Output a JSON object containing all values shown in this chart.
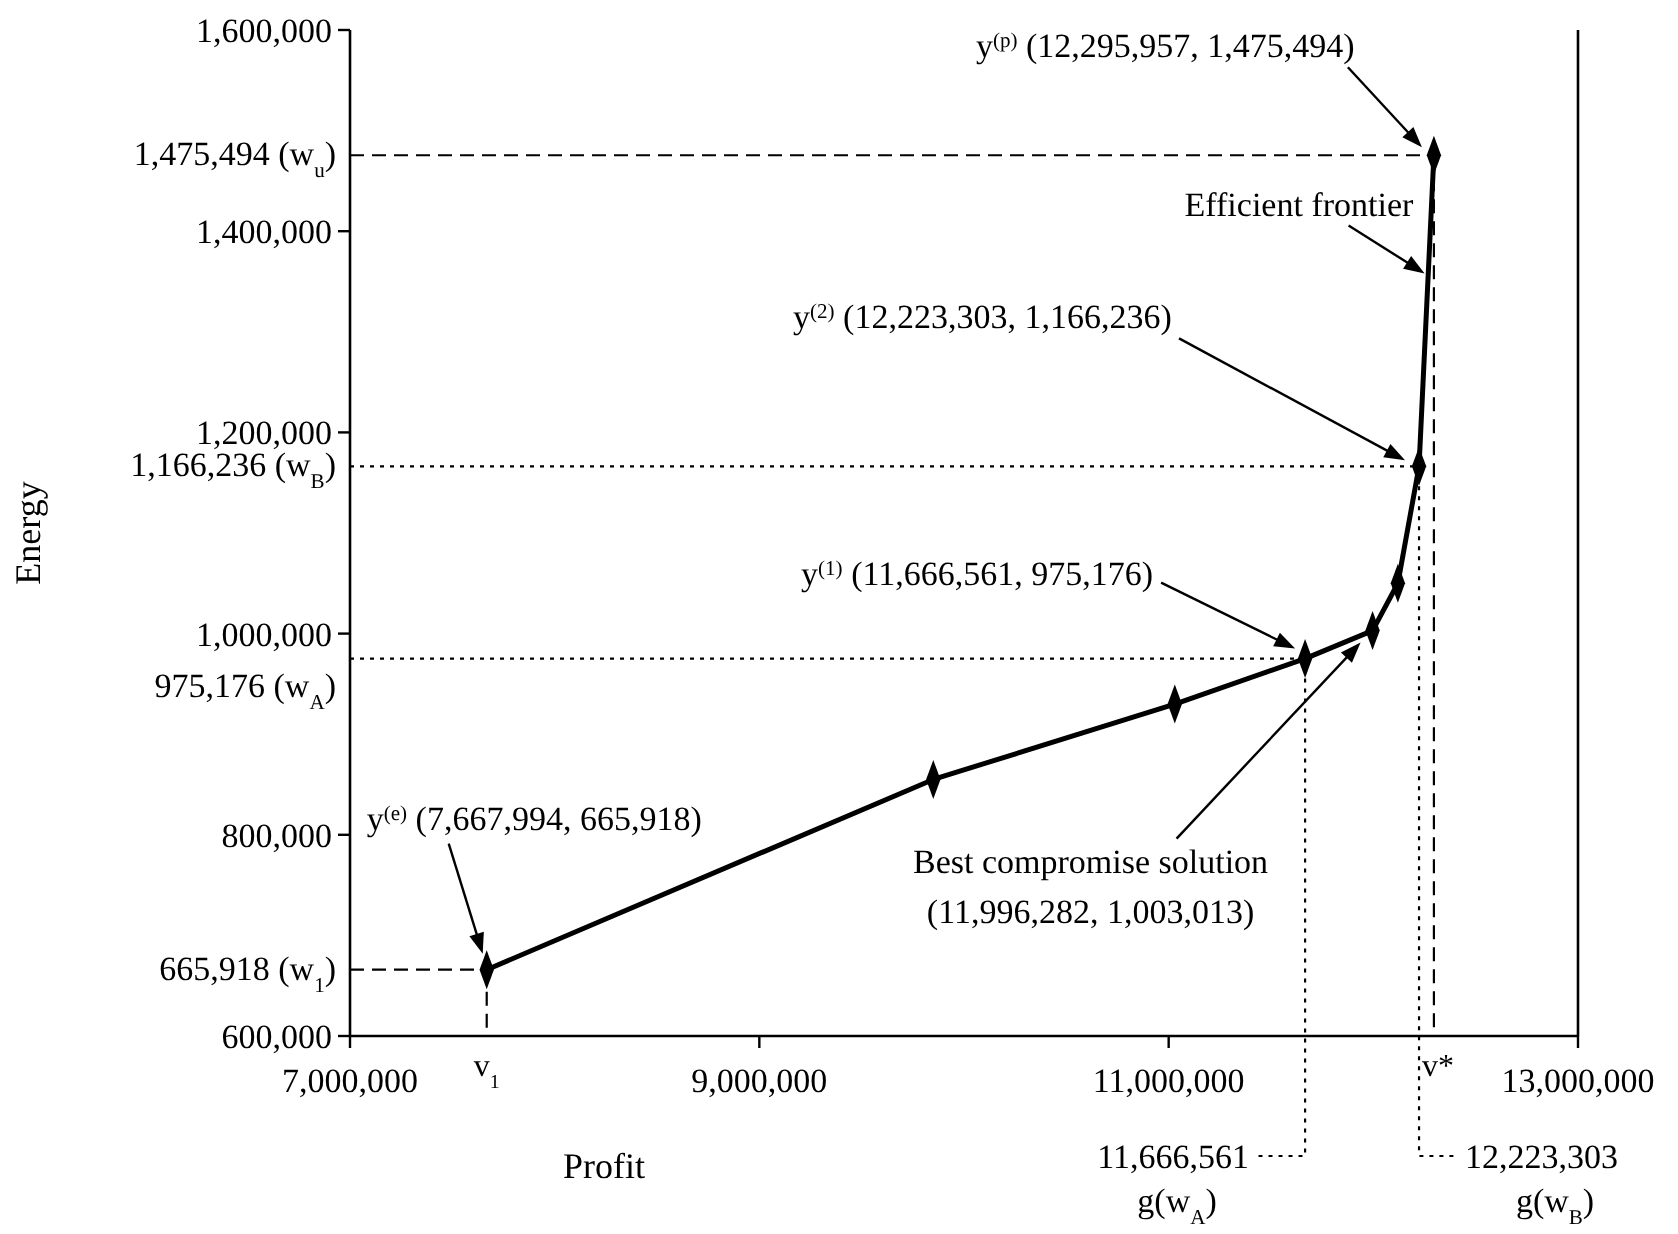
{
  "chart_data": {
    "type": "line",
    "xlabel": "Profit",
    "ylabel": "Energy",
    "x": [
      7667994,
      9850000,
      11030000,
      11666561,
      11996282,
      12120000,
      12223303,
      12295957
    ],
    "series": [
      {
        "color": "#000000",
        "values": [
          665918,
          855000,
          930000,
          975176,
          1003013,
          1050000,
          1166236,
          1475494
        ]
      }
    ],
    "marker": "diamond",
    "line_style": "solid",
    "grid": false,
    "xlim": [
      7000000,
      13000000
    ],
    "xticks": [
      {
        "value": 7000000,
        "label": "7,000,000"
      },
      {
        "value": 9000000,
        "label": "9,000,000"
      },
      {
        "value": 11000000,
        "label": "11,000,000"
      },
      {
        "value": 13000000,
        "label": "13,000,000"
      }
    ],
    "ylim": [
      600000,
      1600000
    ],
    "yticks": [
      {
        "value": 600000,
        "label": "600,000"
      },
      {
        "value": 800000,
        "label": "800,000"
      },
      {
        "value": 1000000,
        "label": "1,000,000"
      },
      {
        "value": 1200000,
        "label": "1,200,000"
      },
      {
        "value": 1400000,
        "label": "1,400,000"
      },
      {
        "value": 1600000,
        "label": "1,600,000"
      }
    ],
    "ref_lines": [
      {
        "axis": "y",
        "value": 1475494,
        "label": "1,475,494 (w$_{u}$)",
        "line_style": "dashed"
      },
      {
        "axis": "y",
        "value": 1166236,
        "label": "1,166,236 (w$_{B}$)",
        "line_style": "dotted"
      },
      {
        "axis": "y",
        "value": 975176,
        "label": "975,176 (w$_{A}$)",
        "line_style": "dotted"
      },
      {
        "axis": "y",
        "value": 665918,
        "label": "665,918 (w$_{1}$)",
        "line_style": "dashed"
      },
      {
        "axis": "x",
        "value": 7667994,
        "label": "v$_{1}$",
        "line_style": "dashed"
      },
      {
        "axis": "x",
        "value": 12295957,
        "label": "v*",
        "line_style": "dashed"
      },
      {
        "axis": "x",
        "value": 11666561,
        "label": "11,666,561\ng(w$_{A}$)",
        "line_style": "dotted"
      },
      {
        "axis": "x",
        "value": 12223303,
        "label": "12,223,303\ng(w$_{B}$)",
        "line_style": "dotted"
      }
    ],
    "annotations": [
      "y$^{(e)}$ (7,667,994, 665,918)",
      "y$^{(1)}$ (11,666,561, 975,176)",
      "y$^{(2)}$ (12,223,303, 1,166,236)",
      "y$^{(p)}$ (12,295,957, 1,475,494)",
      {
        "text": "Efficient frontier",
        "x": 12270000,
        "y": 1350000
      },
      "Best compromise solution\n(11,996,282, 1,003,013)"
    ]
  }
}
